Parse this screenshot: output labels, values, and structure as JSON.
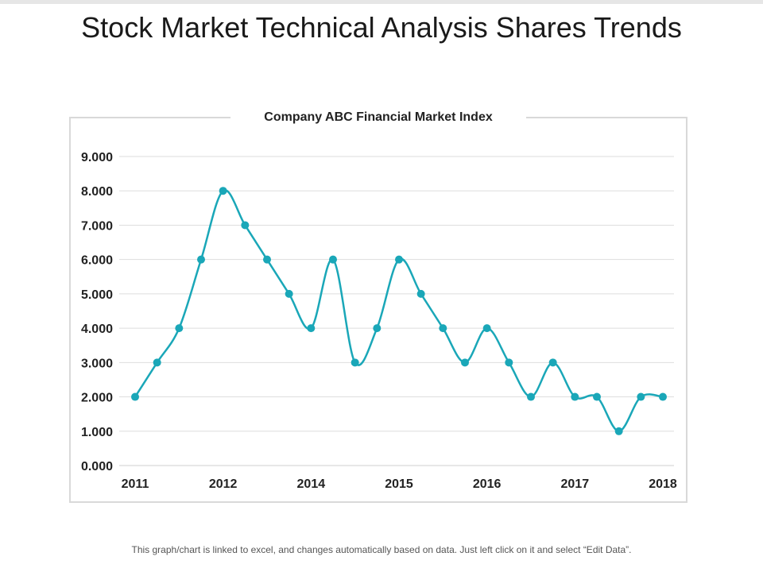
{
  "slide": {
    "title": "Stock Market Technical Analysis Shares Trends",
    "footer": "This graph/chart is linked to excel, and changes automatically based on data. Just left click on it and select “Edit Data”."
  },
  "chart_data": {
    "type": "line",
    "title": "Company ABC Financial Market Index",
    "xlabel": "",
    "ylabel": "",
    "ylim": [
      0,
      9
    ],
    "y_ticks": [
      "0.000",
      "1.000",
      "2.000",
      "3.000",
      "4.000",
      "5.000",
      "6.000",
      "7.000",
      "8.000",
      "9.000"
    ],
    "x_tick_labels": [
      {
        "label": "2011",
        "index": 0
      },
      {
        "label": "2012",
        "index": 4
      },
      {
        "label": "2014",
        "index": 8
      },
      {
        "label": "2015",
        "index": 12
      },
      {
        "label": "2016",
        "index": 16
      },
      {
        "label": "2017",
        "index": 20
      },
      {
        "label": "2018",
        "index": 24
      }
    ],
    "grid": true,
    "legend": "none",
    "line_color": "#1aa7b8",
    "series": [
      {
        "name": "Company ABC Financial Market Index",
        "values": [
          2,
          3,
          4,
          6,
          8,
          7,
          6,
          5,
          4,
          6,
          3,
          4,
          6,
          5,
          4,
          3,
          4,
          3,
          2,
          3,
          2,
          2,
          1,
          2,
          2
        ]
      }
    ]
  }
}
